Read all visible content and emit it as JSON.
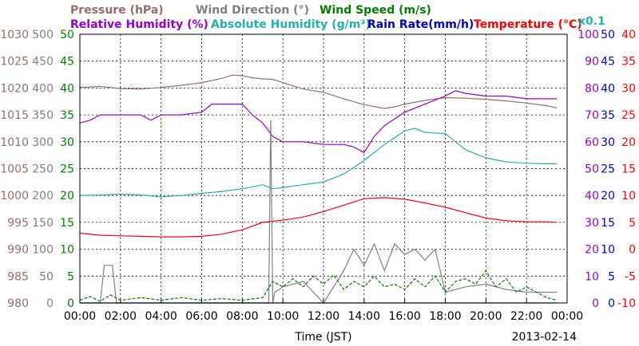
{
  "chart_data": {
    "type": "line",
    "date": "2013-02-14",
    "xlabel": "Time (JST)",
    "x_ticks": [
      "00:00",
      "02:00",
      "04:00",
      "06:00",
      "08:00",
      "10:00",
      "12:00",
      "14:00",
      "16:00",
      "18:00",
      "20:00",
      "22:00",
      "00:00"
    ],
    "grid": true,
    "legend_top": [
      {
        "name": "Pressure (hPa)",
        "color": "#9b6b6b"
      },
      {
        "name": "Wind Direction (°)",
        "color": "#808080"
      },
      {
        "name": "Wind Speed (m/s)",
        "color": "#008000"
      }
    ],
    "legend_second": [
      {
        "name": "Relative Humidity (%)",
        "color": "#9400d3"
      },
      {
        "name": "Absolute Humidity (g/m³)",
        "color": "#20b2aa"
      },
      {
        "name": "Rain Rate(mm/h)",
        "color": "#0000cd"
      },
      {
        "name": "Temperature (°C)",
        "color": "#ff0000"
      }
    ],
    "multiplier_label": "x0.1",
    "axes": {
      "pressure": {
        "color": "#9b6b6b",
        "ticks": [
          "1030",
          "1025",
          "1020",
          "1015",
          "1010",
          "1005",
          "1000",
          "995",
          "990",
          "985",
          "980"
        ],
        "ylim": [
          980,
          1030
        ]
      },
      "wind_direction": {
        "color": "#808080",
        "ticks": [
          "500",
          "450",
          "400",
          "350",
          "300",
          "250",
          "200",
          "150",
          "100",
          "50",
          "0"
        ],
        "ylim": [
          0,
          500
        ]
      },
      "wind_speed": {
        "color": "#008000",
        "ticks": [
          "50",
          "45",
          "40",
          "35",
          "30",
          "25",
          "20",
          "15",
          "10",
          "5",
          "0"
        ],
        "ylim": [
          0,
          50
        ]
      },
      "humidity": {
        "color": "#9400d3",
        "ticks": [
          "100",
          "90",
          "80",
          "70",
          "60",
          "50",
          "40",
          "30",
          "20",
          "10",
          "0"
        ],
        "ylim": [
          0,
          100
        ]
      },
      "rain_rate": {
        "color": "#0000cd",
        "ticks": [
          "50",
          "45",
          "40",
          "35",
          "30",
          "25",
          "20",
          "15",
          "10",
          "5",
          "0"
        ],
        "ylim": [
          0,
          50
        ]
      },
      "temperature": {
        "color": "#ff0000",
        "ticks": [
          "40",
          "35",
          "30",
          "25",
          "20",
          "15",
          "10",
          "5",
          "0",
          "-5",
          "-10"
        ],
        "ylim": [
          -10,
          40
        ]
      }
    },
    "series": [
      {
        "name": "Pressure (hPa)",
        "axis": "pressure",
        "color": "#9b6b6b",
        "x": [
          0,
          1,
          2,
          3,
          4,
          5,
          6,
          7,
          7.5,
          8,
          8.5,
          9,
          9.5,
          10,
          11,
          12,
          13,
          14,
          15,
          15.5,
          16,
          17,
          18,
          19,
          20,
          21,
          22,
          23,
          23.5
        ],
        "y": [
          1020.1,
          1020.3,
          1019.9,
          1019.8,
          1020.1,
          1020.5,
          1021.0,
          1021.8,
          1022.4,
          1022.3,
          1021.9,
          1021.7,
          1021.6,
          1021.0,
          1019.8,
          1019.2,
          1018.0,
          1016.9,
          1016.2,
          1016.5,
          1017.0,
          1017.7,
          1018.2,
          1018.1,
          1017.9,
          1017.6,
          1017.2,
          1016.7,
          1016.3
        ]
      },
      {
        "name": "Relative Humidity (%)",
        "axis": "humidity",
        "color": "#9400d3",
        "x": [
          0,
          0.5,
          1,
          2,
          3,
          3.5,
          4,
          5,
          6,
          6.5,
          7,
          8,
          8.5,
          9,
          9.5,
          10,
          11,
          12,
          13,
          13.5,
          14,
          14.5,
          15,
          16,
          17,
          18,
          18.5,
          19,
          20,
          21,
          22,
          23,
          23.5
        ],
        "y": [
          67,
          68,
          70,
          70,
          70,
          68,
          70,
          70,
          71,
          74,
          74,
          74,
          70,
          67,
          62,
          60,
          60,
          59,
          59,
          58,
          56,
          62,
          66,
          71,
          74,
          77,
          79,
          78,
          77,
          77,
          76,
          76,
          76
        ]
      },
      {
        "name": "Absolute Humidity (g/m³)",
        "axis": "humidity",
        "color": "#20b2aa",
        "x": [
          0,
          1,
          2,
          3,
          4,
          5,
          6,
          7,
          8,
          9,
          9.5,
          10,
          11,
          12,
          13,
          14,
          14.5,
          15,
          16,
          16.5,
          17,
          18,
          18.5,
          19,
          20,
          21,
          22,
          23,
          23.5
        ],
        "y": [
          40.0,
          40.2,
          40.5,
          40.2,
          39.5,
          40.0,
          40.8,
          41.5,
          42.5,
          44.0,
          42.5,
          43.0,
          44.0,
          45.0,
          48.0,
          53.0,
          56.0,
          59.0,
          64.0,
          65.0,
          63.5,
          63.0,
          60.0,
          57.0,
          54.0,
          52.5,
          52.0,
          51.8,
          51.8
        ]
      },
      {
        "name": "Temperature (°C)",
        "axis": "temperature",
        "color": "#ff0000",
        "x": [
          0,
          1,
          2,
          3,
          4,
          5,
          6,
          7,
          8,
          9,
          10,
          11,
          12,
          13,
          14,
          15,
          16,
          17,
          18,
          19,
          20,
          21,
          22,
          23,
          23.5
        ],
        "y": [
          3.0,
          2.6,
          2.5,
          2.4,
          2.3,
          2.3,
          2.4,
          2.8,
          3.6,
          5.0,
          5.4,
          6.0,
          7.0,
          8.2,
          9.4,
          9.6,
          9.3,
          8.6,
          7.8,
          6.8,
          5.8,
          5.3,
          5.1,
          5.1,
          5.0
        ]
      },
      {
        "name": "Wind Direction (°)",
        "axis": "wind_direction",
        "color": "#808080",
        "x": [
          0,
          1,
          1.2,
          1.6,
          1.8,
          2,
          3,
          5,
          7,
          9,
          9.3,
          9.4,
          9.5,
          9.6,
          10,
          11,
          11.5,
          12,
          13,
          13.5,
          14,
          14.5,
          15,
          15.5,
          16,
          16.5,
          17,
          17.5,
          18,
          19,
          20,
          21,
          22,
          23,
          23.5
        ],
        "y": [
          0,
          0,
          70,
          70,
          0,
          0,
          0,
          0,
          0,
          0,
          0,
          340,
          0,
          20,
          30,
          40,
          20,
          0,
          60,
          100,
          70,
          110,
          60,
          110,
          90,
          100,
          80,
          100,
          20,
          30,
          35,
          25,
          20,
          20,
          20
        ]
      },
      {
        "name": "Wind Speed (m/s)",
        "axis": "wind_speed",
        "color": "#008000",
        "x": [
          0,
          0.5,
          1,
          1.5,
          2,
          3,
          4,
          5,
          6,
          7,
          8,
          9,
          9.5,
          10,
          10.5,
          11,
          11.5,
          12,
          12.5,
          13,
          13.5,
          14,
          14.5,
          15,
          15.5,
          16,
          16.5,
          17,
          17.5,
          18,
          18.5,
          19,
          19.5,
          20,
          20.5,
          21,
          21.5,
          22,
          23,
          23.5
        ],
        "y": [
          0.5,
          1.2,
          0.3,
          1.5,
          0.5,
          1,
          0.5,
          1,
          0.5,
          0.8,
          0.5,
          1,
          4,
          3,
          4.5,
          3,
          5,
          3.5,
          5.2,
          2.5,
          4,
          3,
          5,
          3,
          3.5,
          2.5,
          4.5,
          3,
          5,
          2,
          4,
          4.5,
          3.5,
          6,
          3,
          4.5,
          2,
          3,
          1,
          0.5
        ]
      },
      {
        "name": "Rain Rate(mm/h)",
        "axis": "rain_rate",
        "color": "#0000cd",
        "x": [
          0,
          23.5
        ],
        "y": [
          0,
          0
        ]
      }
    ]
  },
  "footer": {
    "xlabel": "Time (JST)",
    "date": "2013-02-14"
  }
}
